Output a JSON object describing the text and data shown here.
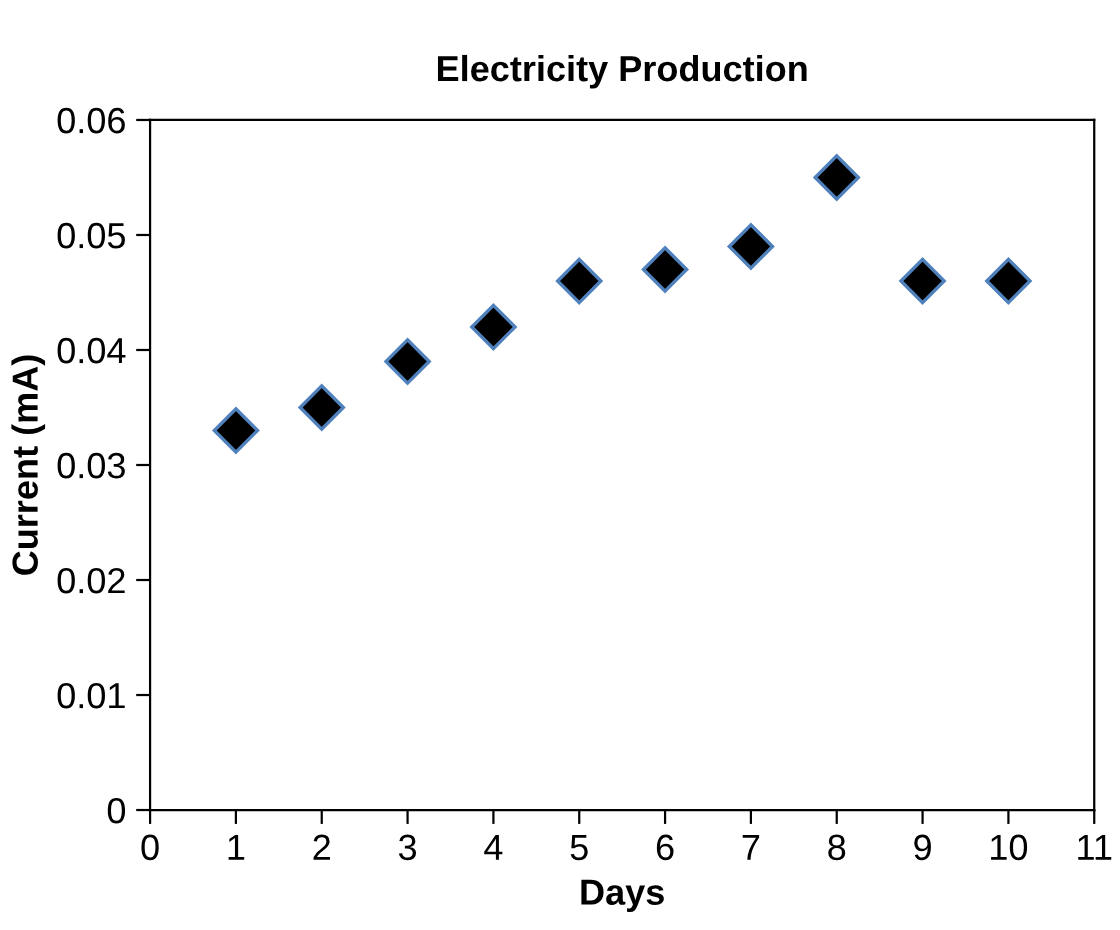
{
  "chart_data": {
    "type": "scatter",
    "title": "Electricity Production",
    "xlabel": "Days",
    "ylabel": "Current (mA)",
    "x": [
      1,
      2,
      3,
      4,
      5,
      6,
      7,
      8,
      9,
      10
    ],
    "series": [
      {
        "color": "#000000",
        "values": [
          0.033,
          0.035,
          0.039,
          0.042,
          0.046,
          0.047,
          0.049,
          0.055,
          0.046,
          0.046
        ]
      }
    ],
    "xlim": [
      0,
      11
    ],
    "xticks": [
      0,
      1,
      2,
      3,
      4,
      5,
      6,
      7,
      8,
      9,
      10,
      11
    ],
    "ylim": [
      0,
      0.06
    ],
    "yticks": [
      {
        "value": 0,
        "label": "0"
      },
      0.01,
      0.02,
      0.03,
      0.04,
      0.05,
      0.06
    ],
    "grid": false,
    "legend": false,
    "marker": "diamond"
  }
}
